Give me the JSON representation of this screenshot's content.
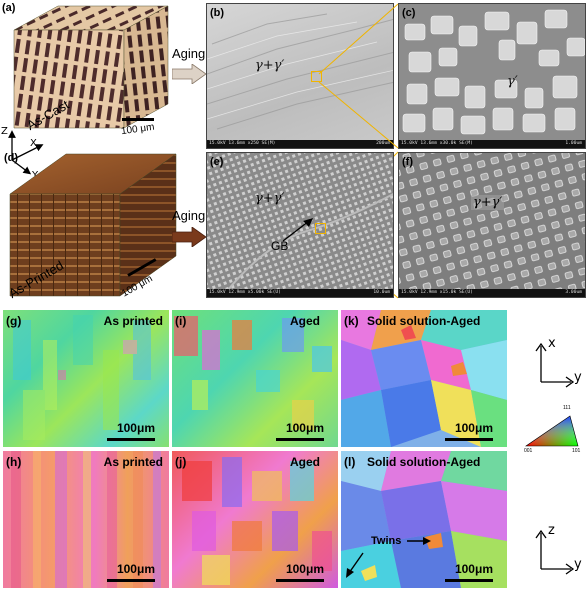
{
  "top": {
    "panel_a": {
      "letter": "(a)",
      "caption": "As-Cast",
      "scale": "100 μm"
    },
    "panel_d": {
      "letter": "(d)",
      "caption": "As-Printed",
      "scale": "100 μm"
    },
    "axes": {
      "z": "Z",
      "x": "X",
      "y": "Y"
    },
    "aging_arrow_top": "Aging",
    "aging_arrow_bottom": "Aging",
    "panel_b": {
      "letter": "(b)",
      "phase": "γ+γ′",
      "footer_left": "15.0kV 13.6mm x250 SE(M)",
      "footer_right": "200um"
    },
    "panel_c": {
      "letter": "(c)",
      "phase": "γ′",
      "footer_left": "15.0kV 13.6mm x30.0k SE(M)",
      "footer_right": "1.00um"
    },
    "panel_e": {
      "letter": "(e)",
      "phase": "γ+γ′",
      "gb": "GB",
      "footer_left": "15.0kV 12.9mm x5.00k SE(U)",
      "footer_right": "10.0um"
    },
    "panel_f": {
      "letter": "(f)",
      "phase": "γ+γ′",
      "footer_left": "15.0kV 12.9mm x15.0k SE(U)",
      "footer_right": "3.00um"
    }
  },
  "bottom": {
    "panel_g": {
      "letter": "(g)",
      "label": "As printed",
      "scale": "100μm"
    },
    "panel_i": {
      "letter": "(i)",
      "label": "Aged",
      "scale": "100μm"
    },
    "panel_k": {
      "letter": "(k)",
      "label": "Solid solution-Aged",
      "scale": "100μm"
    },
    "panel_h": {
      "letter": "(h)",
      "label": "As printed",
      "scale": "100μm"
    },
    "panel_j": {
      "letter": "(j)",
      "label": "Aged",
      "scale": "100μm"
    },
    "panel_l": {
      "letter": "(l)",
      "label": "Solid solution-Aged",
      "scale": "100μm",
      "twins": "Twins"
    },
    "legend_axes_top": {
      "up": "x",
      "right": "y"
    },
    "legend_axes_bottom": {
      "up": "z",
      "right": "y"
    },
    "ipf": {
      "top": "111",
      "left": "001",
      "right": "101"
    }
  },
  "colors": {
    "aging_arrow_top": "#ddd2c6",
    "aging_arrow_bottom": "#7a3a1c",
    "zoom_lines": "#f0b400"
  }
}
